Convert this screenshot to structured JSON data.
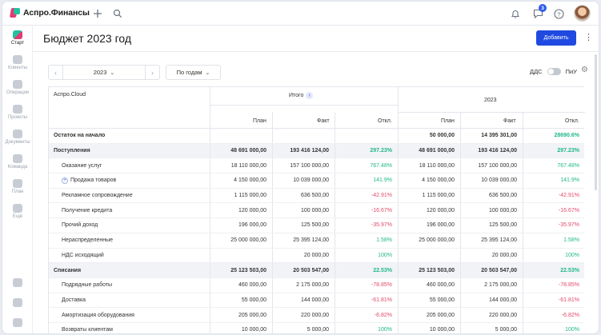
{
  "app": {
    "logo_text": "Аспро.Финансы",
    "notif_count": "3"
  },
  "sidebar": [
    {
      "label": "Старт",
      "active": true
    },
    {
      "label": "Клиенты"
    },
    {
      "label": "Операции"
    },
    {
      "label": "Проекты"
    },
    {
      "label": "Документы"
    },
    {
      "label": "Команда"
    },
    {
      "label": "План"
    },
    {
      "label": "Ещё"
    }
  ],
  "page": {
    "title": "Бюджет 2023 год",
    "add_button": "Добавить"
  },
  "controls": {
    "year": "2023",
    "period": "По годам",
    "toggle_left": "ДДС",
    "toggle_right": "ПиУ"
  },
  "table": {
    "company": "Аспро.Cloud",
    "group_total": "Итого",
    "group_year": "2023",
    "col_plan": "План",
    "col_fact": "Факт",
    "col_dev": "Откл.",
    "rows": [
      {
        "name": "Остаток на начало",
        "type": "bold",
        "t_plan": "",
        "t_fact": "",
        "t_dev": "",
        "y_plan": "50 000,00",
        "y_fact": "14 395 301,00",
        "y_dev": "28690.6%",
        "sign": "pos"
      },
      {
        "name": "Поступления",
        "type": "group",
        "t_plan": "48 691 000,00",
        "t_fact": "193 416 124,00",
        "t_dev": "297.23%",
        "y_plan": "48 691 000,00",
        "y_fact": "193 416 124,00",
        "y_dev": "297.23%",
        "sign": "pos"
      },
      {
        "name": "Оказание услуг",
        "type": "sub",
        "t_plan": "18 110 000,00",
        "t_fact": "157 100 000,00",
        "t_dev": "767.48%",
        "y_plan": "18 110 000,00",
        "y_fact": "157 100 000,00",
        "y_dev": "767.48%",
        "sign": "pos"
      },
      {
        "name": "Продажа товаров",
        "type": "sub-expand",
        "t_plan": "4 150 000,00",
        "t_fact": "10 039 000,00",
        "t_dev": "141.9%",
        "y_plan": "4 150 000,00",
        "y_fact": "10 039 000,00",
        "y_dev": "141.9%",
        "sign": "pos"
      },
      {
        "name": "Рекламное сопровождение",
        "type": "sub",
        "t_plan": "1 115 000,00",
        "t_fact": "636 500,00",
        "t_dev": "-42.91%",
        "y_plan": "1 115 000,00",
        "y_fact": "636 500,00",
        "y_dev": "-42.91%",
        "sign": "neg"
      },
      {
        "name": "Получение кредита",
        "type": "sub",
        "t_plan": "120 000,00",
        "t_fact": "100 000,00",
        "t_dev": "-16.67%",
        "y_plan": "120 000,00",
        "y_fact": "100 000,00",
        "y_dev": "-16.67%",
        "sign": "neg"
      },
      {
        "name": "Прочий доход",
        "type": "sub",
        "t_plan": "196 000,00",
        "t_fact": "125 500,00",
        "t_dev": "-35.97%",
        "y_plan": "196 000,00",
        "y_fact": "125 500,00",
        "y_dev": "-35.97%",
        "sign": "neg"
      },
      {
        "name": "Нераспределенные",
        "type": "sub",
        "t_plan": "25 000 000,00",
        "t_fact": "25 395 124,00",
        "t_dev": "1.58%",
        "y_plan": "25 000 000,00",
        "y_fact": "25 395 124,00",
        "y_dev": "1.58%",
        "sign": "pos"
      },
      {
        "name": "НДС исходящий",
        "type": "sub",
        "t_plan": "",
        "t_fact": "20 000,00",
        "t_dev": "100%",
        "y_plan": "",
        "y_fact": "20 000,00",
        "y_dev": "100%",
        "sign": "pos"
      },
      {
        "name": "Списания",
        "type": "group",
        "t_plan": "25 123 503,00",
        "t_fact": "20 503 547,00",
        "t_dev": "22.53%",
        "y_plan": "25 123 503,00",
        "y_fact": "20 503 547,00",
        "y_dev": "22.53%",
        "sign": "pos"
      },
      {
        "name": "Подрядные работы",
        "type": "sub",
        "t_plan": "460 000,00",
        "t_fact": "2 175 000,00",
        "t_dev": "-78.85%",
        "y_plan": "460 000,00",
        "y_fact": "2 175 000,00",
        "y_dev": "-78.85%",
        "sign": "neg"
      },
      {
        "name": "Доставка",
        "type": "sub",
        "t_plan": "55 000,00",
        "t_fact": "144 000,00",
        "t_dev": "-61.81%",
        "y_plan": "55 000,00",
        "y_fact": "144 000,00",
        "y_dev": "-61.81%",
        "sign": "neg"
      },
      {
        "name": "Амортизация оборудования",
        "type": "sub",
        "t_plan": "205 000,00",
        "t_fact": "220 000,00",
        "t_dev": "-6.82%",
        "y_plan": "205 000,00",
        "y_fact": "220 000,00",
        "y_dev": "-6.82%",
        "sign": "neg"
      },
      {
        "name": "Возвраты клиентам",
        "type": "sub",
        "t_plan": "10 000,00",
        "t_fact": "5 000,00",
        "t_dev": "100%",
        "y_plan": "10 000,00",
        "y_fact": "5 000,00",
        "y_dev": "100%",
        "sign": "pos"
      }
    ]
  },
  "colors": {
    "accent": "#1f49e0",
    "positive": "#20b888",
    "negative": "#e34a6a"
  },
  "icons": [
    "plus-icon",
    "search-icon",
    "bell-icon",
    "chat-icon",
    "help-icon",
    "kebab-icon",
    "settings-icon"
  ]
}
